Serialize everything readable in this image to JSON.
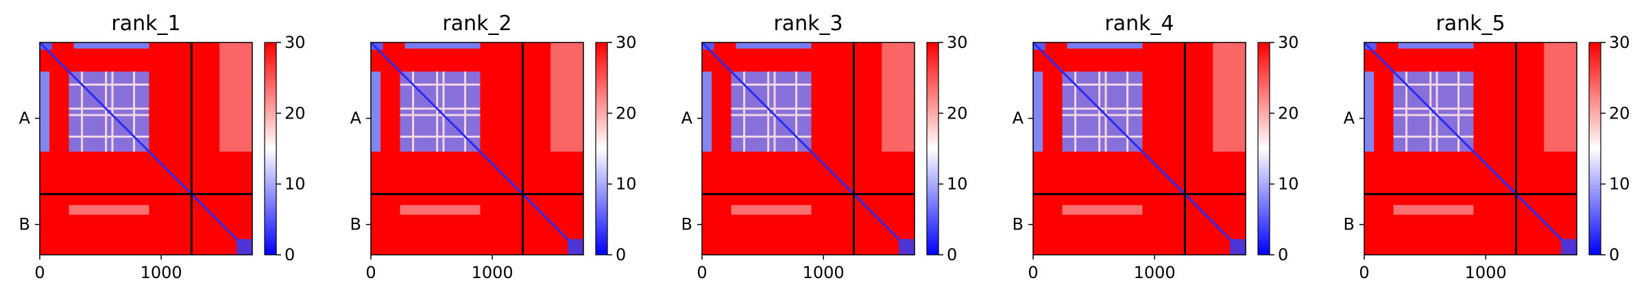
{
  "chart_data": {
    "type": "heatmap",
    "colorbar": {
      "range": [
        0,
        30
      ],
      "ticks": [
        "0",
        "10",
        "20",
        "30"
      ],
      "colors": [
        "#0000ff",
        "#ffffff",
        "#ff0000"
      ]
    },
    "x_ticks": [
      "0",
      "1000"
    ],
    "y_ticks": [
      "A",
      "B"
    ],
    "x_range": [
      0,
      1750
    ],
    "chain_boundary": 1250,
    "panels": [
      {
        "title": "rank_1"
      },
      {
        "title": "rank_2"
      },
      {
        "title": "rank_3"
      },
      {
        "title": "rank_4"
      },
      {
        "title": "rank_5"
      }
    ]
  }
}
